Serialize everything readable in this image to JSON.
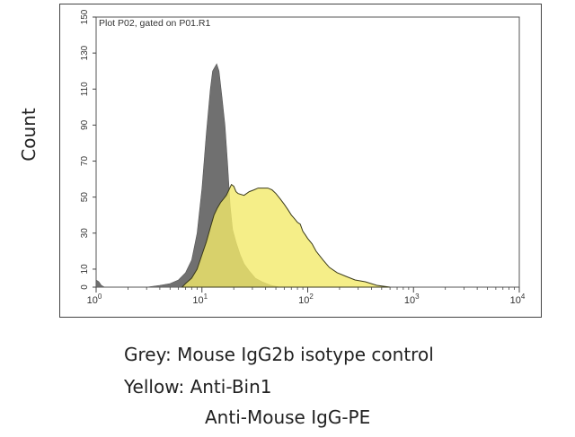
{
  "chart_data": {
    "type": "area",
    "title": "Plot P02, gated on P01.R1",
    "xscale": "log",
    "xlim": [
      1,
      10000
    ],
    "ylim": [
      0,
      150
    ],
    "yticks": [
      0,
      10,
      30,
      50,
      70,
      90,
      110,
      130,
      150
    ],
    "yticks_shown": [
      "0",
      "10",
      "30",
      "50",
      "70",
      "90",
      "110",
      "130",
      "150"
    ],
    "xticks": [
      {
        "value": 1,
        "base": "10",
        "exp": "0"
      },
      {
        "value": 10,
        "base": "10",
        "exp": "1"
      },
      {
        "value": 100,
        "base": "10",
        "exp": "2"
      },
      {
        "value": 1000,
        "base": "10",
        "exp": "3"
      },
      {
        "value": 10000,
        "base": "10",
        "exp": "4"
      }
    ],
    "ylabel": "Count",
    "series": [
      {
        "name": "Grey: Mouse IgG2b isotype control",
        "color": "#707070",
        "points": [
          [
            1.0,
            4
          ],
          [
            1.06,
            3
          ],
          [
            1.12,
            1
          ],
          [
            1.2,
            0
          ],
          [
            3,
            0
          ],
          [
            4,
            1
          ],
          [
            5,
            2
          ],
          [
            6,
            4
          ],
          [
            7,
            8
          ],
          [
            8,
            15
          ],
          [
            9,
            30
          ],
          [
            10,
            55
          ],
          [
            11,
            85
          ],
          [
            12,
            110
          ],
          [
            12.6,
            120
          ],
          [
            13.2,
            122
          ],
          [
            13.8,
            124
          ],
          [
            14.5,
            120
          ],
          [
            15.5,
            105
          ],
          [
            16.5,
            90
          ],
          [
            17.5,
            68
          ],
          [
            18.5,
            45
          ],
          [
            19.5,
            32
          ],
          [
            21,
            25
          ],
          [
            23,
            18
          ],
          [
            25,
            13
          ],
          [
            28,
            9
          ],
          [
            32,
            5
          ],
          [
            37,
            3
          ],
          [
            45,
            1
          ],
          [
            55,
            0
          ]
        ]
      },
      {
        "name": "Yellow: Anti-Bin1 Anti-Mouse IgG-PE",
        "color": "#f2ea6a",
        "points": [
          [
            6.5,
            0
          ],
          [
            7,
            2
          ],
          [
            8,
            5
          ],
          [
            9,
            10
          ],
          [
            10,
            18
          ],
          [
            11,
            25
          ],
          [
            12,
            33
          ],
          [
            13,
            40
          ],
          [
            14,
            44
          ],
          [
            15,
            47
          ],
          [
            16,
            49
          ],
          [
            17,
            51
          ],
          [
            18,
            54
          ],
          [
            19,
            57
          ],
          [
            20,
            56
          ],
          [
            21,
            53
          ],
          [
            22,
            52
          ],
          [
            25,
            51
          ],
          [
            28,
            53
          ],
          [
            31,
            54
          ],
          [
            34,
            55
          ],
          [
            38,
            55
          ],
          [
            42,
            55
          ],
          [
            46,
            54
          ],
          [
            50,
            52
          ],
          [
            55,
            49
          ],
          [
            60,
            46
          ],
          [
            65,
            43
          ],
          [
            70,
            40
          ],
          [
            75,
            38
          ],
          [
            80,
            36
          ],
          [
            85,
            35
          ],
          [
            90,
            31
          ],
          [
            95,
            29
          ],
          [
            100,
            27
          ],
          [
            110,
            24
          ],
          [
            120,
            20
          ],
          [
            140,
            15
          ],
          [
            160,
            11
          ],
          [
            190,
            8
          ],
          [
            230,
            6
          ],
          [
            280,
            4
          ],
          [
            350,
            3
          ],
          [
            450,
            1
          ],
          [
            600,
            0
          ]
        ]
      }
    ]
  },
  "captions": {
    "line1": "Grey: Mouse IgG2b isotype control",
    "line2": "Yellow: Anti-Bin1",
    "line3": "Anti-Mouse IgG-PE"
  }
}
